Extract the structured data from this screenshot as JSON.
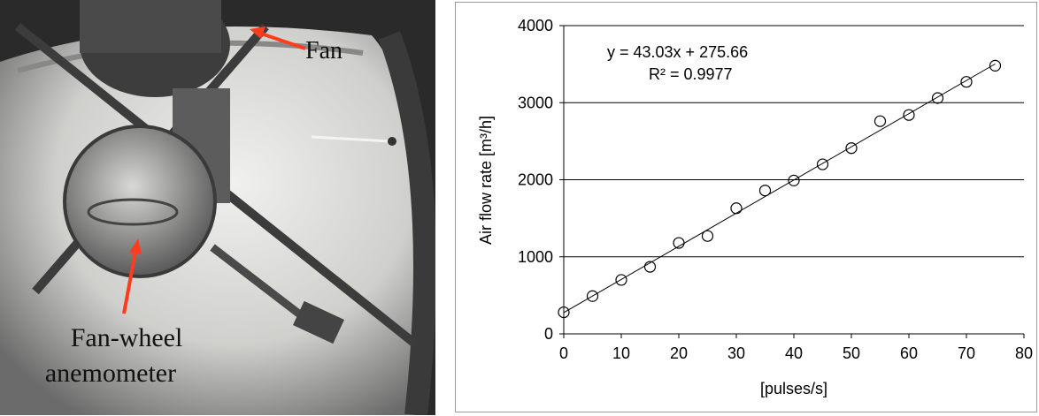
{
  "photo": {
    "label_fan": "Fan",
    "label_anemometer_line1": "Fan-wheel",
    "label_anemometer_line2": "anemometer",
    "arrow_color": "#ff3c1e"
  },
  "chart_data": {
    "type": "scatter",
    "title": "",
    "xlabel": "[pulses/s]",
    "ylabel": "Air flow rate [m³/h]",
    "xlim": [
      0,
      80
    ],
    "ylim": [
      0,
      4000
    ],
    "xticks": [
      0,
      10,
      20,
      30,
      40,
      50,
      60,
      70,
      80
    ],
    "yticks": [
      0,
      1000,
      2000,
      3000,
      4000
    ],
    "grid": "horizontal",
    "marker": "open-circle",
    "series": [
      {
        "x": [
          0,
          5,
          10,
          15,
          20,
          25,
          30,
          35,
          40,
          45,
          50,
          55,
          60,
          65,
          70,
          75
        ],
        "y": [
          280,
          490,
          700,
          870,
          1180,
          1270,
          1630,
          1860,
          1990,
          2200,
          2410,
          2760,
          2840,
          3060,
          3270,
          3480
        ]
      }
    ],
    "trendline": {
      "slope": 43.03,
      "intercept": 275.66,
      "x_range": [
        0,
        75
      ]
    },
    "annotations": {
      "equation": "y = 43.03x + 275.66",
      "r_squared": "R² = 0.9977"
    }
  }
}
